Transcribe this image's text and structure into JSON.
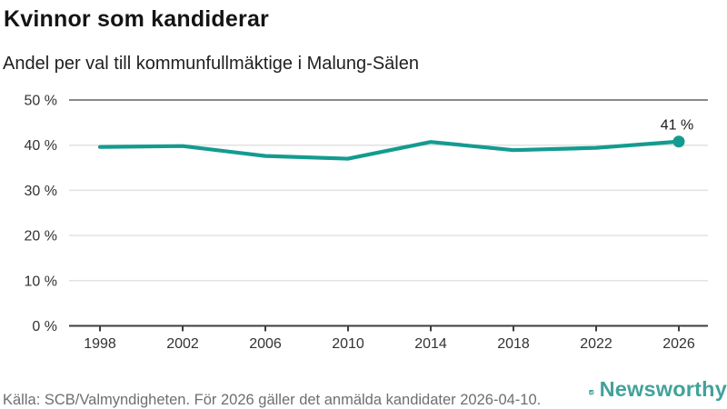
{
  "header": {
    "title": "Kvinnor som kandiderar",
    "subtitle": "Andel per val till kommunfullmäktige i Malung-Sälen"
  },
  "chart_data": {
    "type": "line",
    "title": "Kvinnor som kandiderar",
    "subtitle": "Andel per val till kommunfullmäktige i Malung-Sälen",
    "x": [
      1998,
      2002,
      2006,
      2010,
      2014,
      2018,
      2022,
      2026
    ],
    "x_tick_labels": [
      "1998",
      "2002",
      "2006",
      "2010",
      "2014",
      "2018",
      "2022",
      "2026"
    ],
    "values": [
      39.6,
      39.8,
      37.6,
      37.0,
      40.7,
      38.9,
      39.4,
      40.8
    ],
    "ylim": [
      0,
      50
    ],
    "y_ticks": [
      0,
      10,
      20,
      30,
      40,
      50
    ],
    "y_tick_labels": [
      "0 %",
      "10 %",
      "20 %",
      "30 %",
      "40 %",
      "50 %"
    ],
    "grid": true,
    "legend": "none",
    "marker": "last-point-only",
    "last_point_label": "41 %",
    "colors": {
      "line": "#149b90",
      "grid": "#e2e2e2",
      "upper_bound_line": "#8a8a8a",
      "axis": "#3d3d3d",
      "tick_label": "#333333",
      "annotation": "#1a1a1a"
    }
  },
  "footer": {
    "source": "Källa: SCB/Valmyndigheten. För 2026 gäller det anmälda kandidater 2026-04-10.",
    "brand": "Newsworthy",
    "brand_color": "#42a29b"
  }
}
